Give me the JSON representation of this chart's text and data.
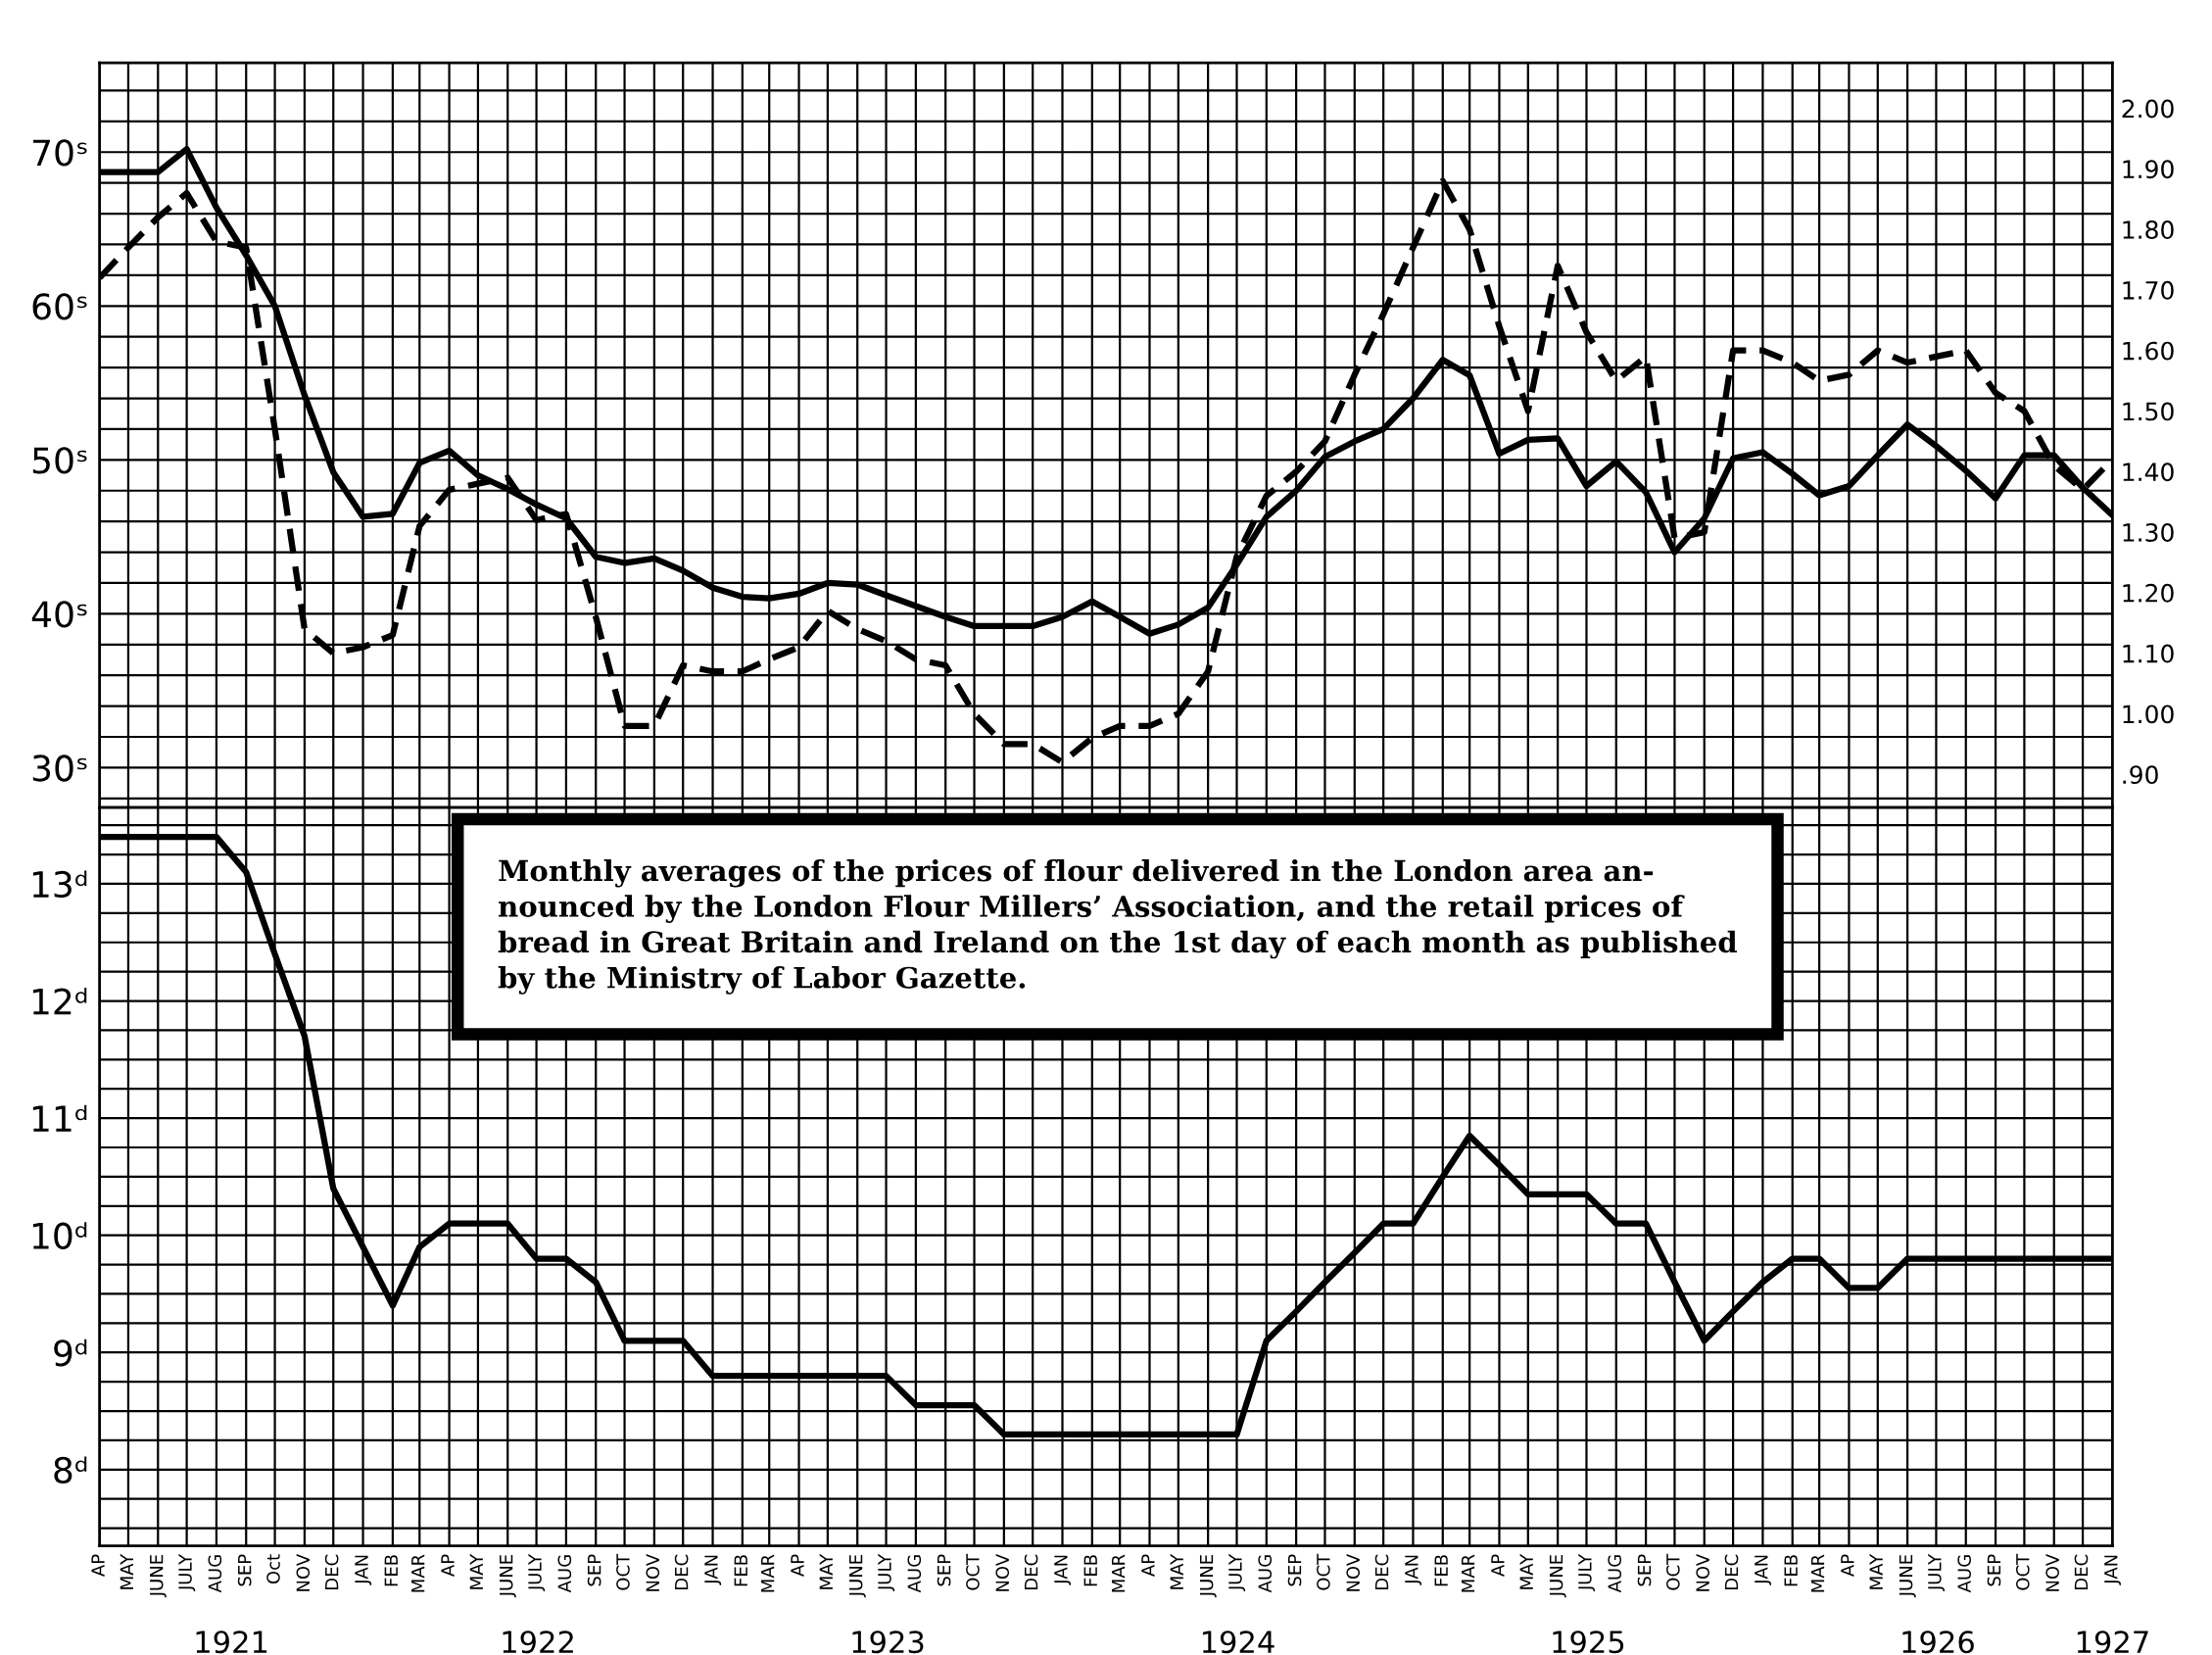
{
  "chart_data": [
    {
      "type": "line",
      "tick_labels": "y",
      "grid": true,
      "x": [
        "1921-04",
        "1921-05",
        "1921-06",
        "1921-07",
        "1921-08",
        "1921-09",
        "1921-10",
        "1921-11",
        "1921-12",
        "1922-01",
        "1922-02",
        "1922-03",
        "1922-04",
        "1922-05",
        "1922-06",
        "1922-07",
        "1922-08",
        "1922-09",
        "1922-10",
        "1922-11",
        "1922-12",
        "1923-01",
        "1923-02",
        "1923-03",
        "1923-04",
        "1923-05",
        "1923-06",
        "1923-07",
        "1923-08",
        "1923-09",
        "1923-10",
        "1923-11",
        "1923-12",
        "1924-01",
        "1924-02",
        "1924-03",
        "1924-04",
        "1924-05",
        "1924-06",
        "1924-07",
        "1924-08",
        "1924-09",
        "1924-10",
        "1924-11",
        "1924-12",
        "1925-01",
        "1925-02",
        "1925-03",
        "1925-04",
        "1925-05",
        "1925-06",
        "1925-07",
        "1925-08",
        "1925-09",
        "1925-10",
        "1925-11",
        "1925-12",
        "1926-01",
        "1926-02",
        "1926-03",
        "1926-04",
        "1926-05",
        "1926-06",
        "1926-07",
        "1926-08",
        "1926-09",
        "1926-10",
        "1926-11",
        "1926-12",
        "1927-01"
      ],
      "xlim": [
        "1921-04",
        "1927-01"
      ],
      "xticks": [
        {
          "value": "1921-04",
          "label": null
        },
        {
          "value": "1921-05",
          "label": null
        },
        {
          "value": "1921-06",
          "label": null
        },
        {
          "value": "1921-07",
          "label": null
        },
        {
          "value": "1921-08",
          "label": null
        },
        {
          "value": "1921-09",
          "label": null
        },
        {
          "value": "1921-10",
          "label": null
        },
        {
          "value": "1921-11",
          "label": null
        },
        {
          "value": "1921-12",
          "label": null
        },
        {
          "value": "1922-01",
          "label": null
        },
        {
          "value": "1922-02",
          "label": null
        },
        {
          "value": "1922-03",
          "label": null
        },
        {
          "value": "1922-04",
          "label": null
        },
        {
          "value": "1922-05",
          "label": null
        },
        {
          "value": "1922-06",
          "label": null
        },
        {
          "value": "1922-07",
          "label": null
        },
        {
          "value": "1922-08",
          "label": null
        },
        {
          "value": "1922-09",
          "label": null
        },
        {
          "value": "1922-10",
          "label": null
        },
        {
          "value": "1922-11",
          "label": null
        },
        {
          "value": "1922-12",
          "label": null
        },
        {
          "value": "1923-01",
          "label": null
        },
        {
          "value": "1923-02",
          "label": null
        },
        {
          "value": "1923-03",
          "label": null
        },
        {
          "value": "1923-04",
          "label": null
        },
        {
          "value": "1923-05",
          "label": null
        },
        {
          "value": "1923-06",
          "label": null
        },
        {
          "value": "1923-07",
          "label": null
        },
        {
          "value": "1923-08",
          "label": null
        },
        {
          "value": "1923-09",
          "label": null
        },
        {
          "value": "1923-10",
          "label": null
        },
        {
          "value": "1923-11",
          "label": null
        },
        {
          "value": "1923-12",
          "label": null
        },
        {
          "value": "1924-01",
          "label": null
        },
        {
          "value": "1924-02",
          "label": null
        },
        {
          "value": "1924-03",
          "label": null
        },
        {
          "value": "1924-04",
          "label": null
        },
        {
          "value": "1924-05",
          "label": null
        },
        {
          "value": "1924-06",
          "label": null
        },
        {
          "value": "1924-07",
          "label": null
        },
        {
          "value": "1924-08",
          "label": null
        },
        {
          "value": "1924-09",
          "label": null
        },
        {
          "value": "1924-10",
          "label": null
        },
        {
          "value": "1924-11",
          "label": null
        },
        {
          "value": "1924-12",
          "label": null
        },
        {
          "value": "1925-01",
          "label": null
        },
        {
          "value": "1925-02",
          "label": null
        },
        {
          "value": "1925-03",
          "label": null
        },
        {
          "value": "1925-04",
          "label": null
        },
        {
          "value": "1925-05",
          "label": null
        },
        {
          "value": "1925-06",
          "label": null
        },
        {
          "value": "1925-07",
          "label": null
        },
        {
          "value": "1925-08",
          "label": null
        },
        {
          "value": "1925-09",
          "label": null
        },
        {
          "value": "1925-10",
          "label": null
        },
        {
          "value": "1925-11",
          "label": null
        },
        {
          "value": "1925-12",
          "label": null
        },
        {
          "value": "1926-01",
          "label": null
        },
        {
          "value": "1926-02",
          "label": null
        },
        {
          "value": "1926-03",
          "label": null
        },
        {
          "value": "1926-04",
          "label": null
        },
        {
          "value": "1926-05",
          "label": null
        },
        {
          "value": "1926-06",
          "label": null
        },
        {
          "value": "1926-07",
          "label": null
        },
        {
          "value": "1926-08",
          "label": null
        },
        {
          "value": "1926-09",
          "label": null
        },
        {
          "value": "1926-10",
          "label": null
        },
        {
          "value": "1926-11",
          "label": null
        },
        {
          "value": "1926-12",
          "label": null
        },
        {
          "value": "1927-01",
          "label": null
        }
      ],
      "ylim": [
        27.4,
        75.8
      ],
      "yticks": [
        {
          "value": 28,
          "label": null
        },
        {
          "value": 30,
          "label": "30ˢ"
        },
        {
          "value": 32,
          "label": null
        },
        {
          "value": 34,
          "label": null
        },
        {
          "value": 36,
          "label": null
        },
        {
          "value": 38,
          "label": null
        },
        {
          "value": 40,
          "label": "40ˢ"
        },
        {
          "value": 42,
          "label": null
        },
        {
          "value": 44,
          "label": null
        },
        {
          "value": 46,
          "label": null
        },
        {
          "value": 48,
          "label": null
        },
        {
          "value": 50,
          "label": "50ˢ"
        },
        {
          "value": 52,
          "label": null
        },
        {
          "value": 54,
          "label": null
        },
        {
          "value": 56,
          "label": null
        },
        {
          "value": 58,
          "label": null
        },
        {
          "value": 60,
          "label": "60ˢ"
        },
        {
          "value": 62,
          "label": null
        },
        {
          "value": 64,
          "label": null
        },
        {
          "value": 66,
          "label": null
        },
        {
          "value": 68,
          "label": null
        },
        {
          "value": 70,
          "label": "70ˢ"
        },
        {
          "value": 72,
          "label": null
        },
        {
          "value": 74,
          "label": null
        }
      ],
      "y2lim": [
        0.845,
        2.075
      ],
      "y2ticks": [
        {
          "value": 0.9,
          "label": ".90"
        },
        {
          "value": 1.0,
          "label": "1.00"
        },
        {
          "value": 1.1,
          "label": "1.10"
        },
        {
          "value": 1.2,
          "label": "1.20"
        },
        {
          "value": 1.3,
          "label": "1.30"
        },
        {
          "value": 1.4,
          "label": "1.40"
        },
        {
          "value": 1.5,
          "label": "1.50"
        },
        {
          "value": 1.6,
          "label": "1.60"
        },
        {
          "value": 1.7,
          "label": "1.70"
        },
        {
          "value": 1.8,
          "label": "1.80"
        },
        {
          "value": 1.9,
          "label": "1.90"
        },
        {
          "value": 2.0,
          "label": "2.00"
        }
      ],
      "series": [
        {
          "color": "#000000",
          "line_style": "solid",
          "values": [
            68.7,
            68.7,
            68.7,
            70.2,
            66.4,
            63.3,
            60.0,
            54.2,
            49.2,
            46.3,
            46.5,
            49.8,
            50.6,
            49.0,
            48.1,
            47.1,
            46.2,
            43.7,
            43.3,
            43.6,
            42.8,
            41.7,
            41.1,
            41.0,
            41.3,
            42.0,
            41.9,
            41.2,
            40.5,
            39.8,
            39.2,
            39.2,
            39.2,
            39.8,
            40.8,
            39.8,
            38.7,
            39.3,
            40.4,
            43.2,
            46.3,
            48.0,
            50.2,
            51.2,
            52.0,
            54.0,
            56.5,
            55.5,
            50.4,
            51.3,
            51.4,
            48.3,
            49.9,
            47.9,
            44.0,
            46.2,
            50.1,
            50.5,
            49.1,
            47.7,
            48.3,
            50.3,
            52.3,
            50.9,
            49.3,
            47.5,
            50.3,
            50.3,
            48.2,
            46.4
          ]
        },
        {
          "color": "#000000",
          "line_style": "dashed",
          "axis": "y2",
          "values": [
            1.72,
            1.77,
            1.82,
            1.86,
            1.78,
            1.77,
            1.47,
            1.14,
            1.1,
            1.11,
            1.13,
            1.31,
            1.37,
            1.38,
            1.39,
            1.32,
            1.33,
            1.16,
            0.98,
            0.98,
            1.08,
            1.07,
            1.07,
            1.09,
            1.11,
            1.17,
            1.14,
            1.12,
            1.09,
            1.08,
            1.0,
            0.95,
            0.95,
            0.92,
            0.96,
            0.98,
            0.98,
            1.0,
            1.07,
            1.26,
            1.36,
            1.4,
            1.45,
            1.56,
            1.66,
            1.77,
            1.88,
            1.8,
            1.64,
            1.5,
            1.74,
            1.63,
            1.55,
            1.59,
            1.29,
            1.3,
            1.6,
            1.6,
            1.58,
            1.55,
            1.56,
            1.6,
            1.58,
            1.59,
            1.6,
            1.53,
            1.5,
            1.41,
            1.37,
            1.42
          ]
        }
      ]
    },
    {
      "type": "line",
      "grid": true,
      "x": [
        "1921-04",
        "1921-05",
        "1921-06",
        "1921-07",
        "1921-08",
        "1921-09",
        "1921-10",
        "1921-11",
        "1921-12",
        "1922-01",
        "1922-02",
        "1922-03",
        "1922-04",
        "1922-05",
        "1922-06",
        "1922-07",
        "1922-08",
        "1922-09",
        "1922-10",
        "1922-11",
        "1922-12",
        "1923-01",
        "1923-02",
        "1923-03",
        "1923-04",
        "1923-05",
        "1923-06",
        "1923-07",
        "1923-08",
        "1923-09",
        "1923-10",
        "1923-11",
        "1923-12",
        "1924-01",
        "1924-02",
        "1924-03",
        "1924-04",
        "1924-05",
        "1924-06",
        "1924-07",
        "1924-08",
        "1924-09",
        "1924-10",
        "1924-11",
        "1924-12",
        "1925-01",
        "1925-02",
        "1925-03",
        "1925-04",
        "1925-05",
        "1925-06",
        "1925-07",
        "1925-08",
        "1925-09",
        "1925-10",
        "1925-11",
        "1925-12",
        "1926-01",
        "1926-02",
        "1926-03",
        "1926-04",
        "1926-05",
        "1926-06",
        "1926-07",
        "1926-08",
        "1926-09",
        "1926-10",
        "1926-11",
        "1926-12",
        "1927-01"
      ],
      "xlim": [
        "1921-04",
        "1927-01"
      ],
      "xticks": [
        {
          "value": "1921-04",
          "label": "AP"
        },
        {
          "value": "1921-05",
          "label": "MAY"
        },
        {
          "value": "1921-06",
          "label": "JUNE"
        },
        {
          "value": "1921-07",
          "label": "JULY"
        },
        {
          "value": "1921-08",
          "label": "AUG"
        },
        {
          "value": "1921-09",
          "label": "SEP"
        },
        {
          "value": "1921-10",
          "label": "Oct"
        },
        {
          "value": "1921-11",
          "label": "NOV"
        },
        {
          "value": "1921-12",
          "label": "DEC"
        },
        {
          "value": "1922-01",
          "label": "JAN"
        },
        {
          "value": "1922-02",
          "label": "FEB"
        },
        {
          "value": "1922-03",
          "label": "MAR"
        },
        {
          "value": "1922-04",
          "label": "AP"
        },
        {
          "value": "1922-05",
          "label": "MAY"
        },
        {
          "value": "1922-06",
          "label": "JUNE"
        },
        {
          "value": "1922-07",
          "label": "JULY"
        },
        {
          "value": "1922-08",
          "label": "AUG"
        },
        {
          "value": "1922-09",
          "label": "SEP"
        },
        {
          "value": "1922-10",
          "label": "OCT"
        },
        {
          "value": "1922-11",
          "label": "NOV"
        },
        {
          "value": "1922-12",
          "label": "DEC"
        },
        {
          "value": "1923-01",
          "label": "JAN"
        },
        {
          "value": "1923-02",
          "label": "FEB"
        },
        {
          "value": "1923-03",
          "label": "MAR"
        },
        {
          "value": "1923-04",
          "label": "AP"
        },
        {
          "value": "1923-05",
          "label": "MAY"
        },
        {
          "value": "1923-06",
          "label": "JUNE"
        },
        {
          "value": "1923-07",
          "label": "JULY"
        },
        {
          "value": "1923-08",
          "label": "AUG"
        },
        {
          "value": "1923-09",
          "label": "SEP"
        },
        {
          "value": "1923-10",
          "label": "OCT"
        },
        {
          "value": "1923-11",
          "label": "NOV"
        },
        {
          "value": "1923-12",
          "label": "DEC"
        },
        {
          "value": "1924-01",
          "label": "JAN"
        },
        {
          "value": "1924-02",
          "label": "FEB"
        },
        {
          "value": "1924-03",
          "label": "MAR"
        },
        {
          "value": "1924-04",
          "label": "AP"
        },
        {
          "value": "1924-05",
          "label": "MAY"
        },
        {
          "value": "1924-06",
          "label": "JUNE"
        },
        {
          "value": "1924-07",
          "label": "JULY"
        },
        {
          "value": "1924-08",
          "label": "AUG"
        },
        {
          "value": "1924-09",
          "label": "SEP"
        },
        {
          "value": "1924-10",
          "label": "OCT"
        },
        {
          "value": "1924-11",
          "label": "NOV"
        },
        {
          "value": "1924-12",
          "label": "DEC"
        },
        {
          "value": "1925-01",
          "label": "JAN"
        },
        {
          "value": "1925-02",
          "label": "FEB"
        },
        {
          "value": "1925-03",
          "label": "MAR"
        },
        {
          "value": "1925-04",
          "label": "AP"
        },
        {
          "value": "1925-05",
          "label": "MAY"
        },
        {
          "value": "1925-06",
          "label": "JUNE"
        },
        {
          "value": "1925-07",
          "label": "JULY"
        },
        {
          "value": "1925-08",
          "label": "AUG"
        },
        {
          "value": "1925-09",
          "label": "SEP"
        },
        {
          "value": "1925-10",
          "label": "OCT"
        },
        {
          "value": "1925-11",
          "label": "NOV"
        },
        {
          "value": "1925-12",
          "label": "DEC"
        },
        {
          "value": "1926-01",
          "label": "JAN"
        },
        {
          "value": "1926-02",
          "label": "FEB"
        },
        {
          "value": "1926-03",
          "label": "MAR"
        },
        {
          "value": "1926-04",
          "label": "AP"
        },
        {
          "value": "1926-05",
          "label": "MAY"
        },
        {
          "value": "1926-06",
          "label": "JUNE"
        },
        {
          "value": "1926-07",
          "label": "JULY"
        },
        {
          "value": "1926-08",
          "label": "AUG"
        },
        {
          "value": "1926-09",
          "label": "SEP"
        },
        {
          "value": "1926-10",
          "label": "OCT"
        },
        {
          "value": "1926-11",
          "label": "NOV"
        },
        {
          "value": "1926-12",
          "label": "DEC"
        },
        {
          "value": "1927-01",
          "label": "JAN"
        }
      ],
      "ylim": [
        7.35,
        13.65
      ],
      "yticks": [
        {
          "value": 7.5,
          "label": null
        },
        {
          "value": 7.75,
          "label": null
        },
        {
          "value": 8,
          "label": "8ᵈ"
        },
        {
          "value": 8.25,
          "label": null
        },
        {
          "value": 8.5,
          "label": null
        },
        {
          "value": 8.75,
          "label": null
        },
        {
          "value": 9,
          "label": "9ᵈ"
        },
        {
          "value": 9.25,
          "label": null
        },
        {
          "value": 9.5,
          "label": null
        },
        {
          "value": 9.75,
          "label": null
        },
        {
          "value": 10,
          "label": "10ᵈ"
        },
        {
          "value": 10.25,
          "label": null
        },
        {
          "value": 10.5,
          "label": null
        },
        {
          "value": 10.75,
          "label": null
        },
        {
          "value": 11,
          "label": "11ᵈ"
        },
        {
          "value": 11.25,
          "label": null
        },
        {
          "value": 11.5,
          "label": null
        },
        {
          "value": 11.75,
          "label": null
        },
        {
          "value": 12,
          "label": "12ᵈ"
        },
        {
          "value": 12.25,
          "label": null
        },
        {
          "value": 12.5,
          "label": null
        },
        {
          "value": 12.75,
          "label": null
        },
        {
          "value": 13,
          "label": "13ᵈ"
        },
        {
          "value": 13.25,
          "label": null
        },
        {
          "value": 13.5,
          "label": null
        }
      ],
      "series": [
        {
          "color": "#000000",
          "line_style": "solid",
          "values": [
            13.4,
            13.4,
            13.4,
            13.4,
            13.4,
            13.1,
            12.4,
            11.7,
            10.4,
            9.9,
            9.4,
            9.9,
            10.1,
            10.1,
            10.1,
            9.8,
            9.8,
            9.6,
            9.1,
            9.1,
            9.1,
            8.8,
            8.8,
            8.8,
            8.8,
            8.8,
            8.8,
            8.8,
            8.55,
            8.55,
            8.55,
            8.3,
            8.3,
            8.3,
            8.3,
            8.3,
            8.3,
            8.3,
            8.3,
            8.3,
            9.1,
            9.35,
            9.6,
            9.85,
            10.1,
            10.1,
            10.5,
            10.85,
            10.6,
            10.35,
            10.35,
            10.35,
            10.1,
            10.1,
            9.6,
            9.1,
            9.35,
            9.6,
            9.8,
            9.8,
            9.55,
            9.55,
            9.8,
            9.8,
            9.8,
            9.8,
            9.8,
            9.8,
            9.8,
            9.8
          ]
        }
      ],
      "annotations": [
        "Monthly averages of the prices of flour delivered in the London area an-\nnounced by the London Flour Millers’ Association, and the retail prices of\nbread in Great Britain and Ireland on the 1st day of each month as published\nby the Ministry of Labor Gazette.",
        "1921",
        "1922",
        "1923",
        "1924",
        "1925",
        "1926",
        "1927"
      ]
    }
  ]
}
